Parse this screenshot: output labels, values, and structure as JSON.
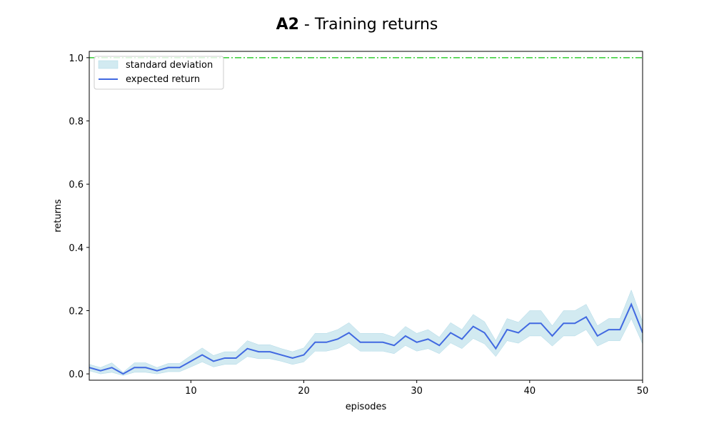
{
  "chart_data": {
    "type": "line",
    "title_bold": "A2",
    "title_rest": " - Training returns",
    "xlabel": "episodes",
    "ylabel": "returns",
    "xlim": [
      1,
      50
    ],
    "ylim": [
      -0.02,
      1.02
    ],
    "xticks": [
      10,
      20,
      30,
      40,
      50
    ],
    "yticks": [
      0.0,
      0.2,
      0.4,
      0.6,
      0.8,
      1.0
    ],
    "ytick_labels": [
      "0.0",
      "0.2",
      "0.4",
      "0.6",
      "0.8",
      "1.0"
    ],
    "grid": false,
    "legend_position": "top-left",
    "x": [
      1,
      2,
      3,
      4,
      5,
      6,
      7,
      8,
      9,
      10,
      11,
      12,
      13,
      14,
      15,
      16,
      17,
      18,
      19,
      20,
      21,
      22,
      23,
      24,
      25,
      26,
      27,
      28,
      29,
      30,
      31,
      32,
      33,
      34,
      35,
      36,
      37,
      38,
      39,
      40,
      41,
      42,
      43,
      44,
      45,
      46,
      47,
      48,
      49,
      50
    ],
    "series": [
      {
        "name": "expected return",
        "color": "#4169e1",
        "values": [
          0.02,
          0.01,
          0.02,
          0.0,
          0.02,
          0.02,
          0.01,
          0.02,
          0.02,
          0.04,
          0.06,
          0.04,
          0.05,
          0.05,
          0.08,
          0.07,
          0.07,
          0.06,
          0.05,
          0.06,
          0.1,
          0.1,
          0.11,
          0.13,
          0.1,
          0.1,
          0.1,
          0.09,
          0.12,
          0.1,
          0.11,
          0.09,
          0.13,
          0.11,
          0.15,
          0.13,
          0.08,
          0.14,
          0.13,
          0.16,
          0.16,
          0.12,
          0.16,
          0.16,
          0.18,
          0.12,
          0.14,
          0.14,
          0.22,
          0.13
        ]
      },
      {
        "name": "standard deviation",
        "type": "band",
        "color": "#add8e6",
        "half_width": [
          0.01,
          0.01,
          0.015,
          0.005,
          0.015,
          0.015,
          0.01,
          0.013,
          0.013,
          0.018,
          0.022,
          0.018,
          0.02,
          0.02,
          0.025,
          0.022,
          0.022,
          0.02,
          0.02,
          0.022,
          0.028,
          0.028,
          0.03,
          0.032,
          0.028,
          0.028,
          0.028,
          0.026,
          0.03,
          0.028,
          0.03,
          0.026,
          0.032,
          0.03,
          0.038,
          0.035,
          0.025,
          0.035,
          0.033,
          0.04,
          0.04,
          0.032,
          0.04,
          0.04,
          0.04,
          0.032,
          0.035,
          0.035,
          0.045,
          0.035
        ]
      }
    ],
    "reference_line": {
      "y": 1.0,
      "color": "#32cd32",
      "style": "dash-dot"
    }
  }
}
